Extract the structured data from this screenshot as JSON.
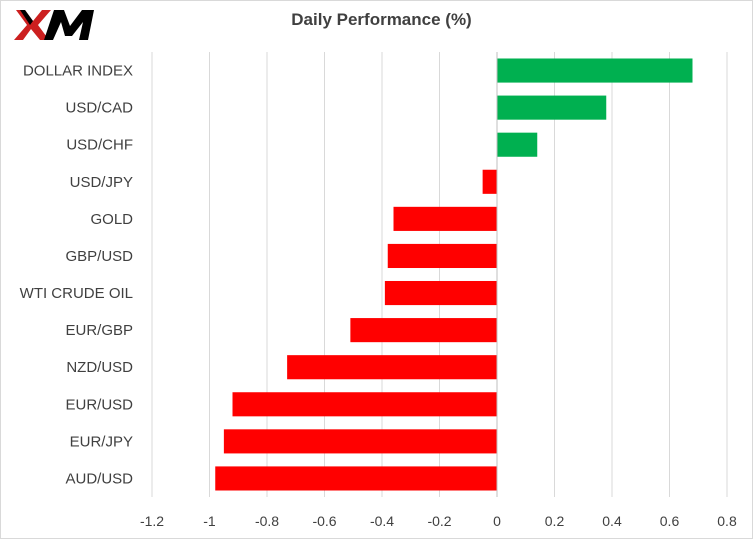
{
  "brand": {
    "logo_text": "XM"
  },
  "colors": {
    "positive": "#00b050",
    "negative": "#ff0000",
    "grid": "#d9d9d9",
    "axis": "#bfbfbf",
    "text": "#404040"
  },
  "chart_data": {
    "type": "bar",
    "orientation": "horizontal",
    "title": "Daily Performance  (%)",
    "categories": [
      "DOLLAR INDEX",
      "USD/CAD",
      "USD/CHF",
      "USD/JPY",
      "GOLD",
      "GBP/USD",
      "WTI CRUDE OIL",
      "EUR/GBP",
      "NZD/USD",
      "EUR/USD",
      "EUR/JPY",
      "AUD/USD"
    ],
    "values": [
      0.68,
      0.38,
      0.14,
      -0.05,
      -0.36,
      -0.38,
      -0.39,
      -0.51,
      -0.73,
      -0.92,
      -0.95,
      -0.98
    ],
    "xlim": [
      -1.2,
      0.8
    ],
    "xticks": [
      "-1.2",
      "-1",
      "-0.8",
      "-0.6",
      "-0.4",
      "-0.2",
      "0",
      "0.2",
      "0.4",
      "0.6",
      "0.8"
    ],
    "grid": true,
    "legend": "none"
  }
}
